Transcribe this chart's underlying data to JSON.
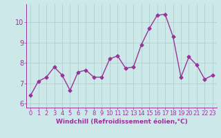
{
  "x": [
    0,
    1,
    2,
    3,
    4,
    5,
    6,
    7,
    8,
    9,
    10,
    11,
    12,
    13,
    14,
    15,
    16,
    17,
    18,
    19,
    20,
    21,
    22,
    23
  ],
  "y": [
    6.4,
    7.1,
    7.3,
    7.8,
    7.4,
    6.65,
    7.55,
    7.65,
    7.3,
    7.3,
    8.2,
    8.35,
    7.75,
    7.8,
    8.9,
    9.7,
    10.35,
    10.4,
    9.3,
    7.3,
    8.3,
    7.9,
    7.2,
    7.4
  ],
  "line_color": "#993399",
  "marker": "D",
  "marker_size": 2.5,
  "linewidth": 1.0,
  "bg_color": "#cce8e8",
  "grid_color": "#aacccc",
  "xlabel": "Windchill (Refroidissement éolien,°C)",
  "xlabel_fontsize": 6.5,
  "xlabel_color": "#993399",
  "tick_color": "#993399",
  "tick_fontsize": 6.0,
  "ytick_fontsize": 7.0,
  "ylim": [
    5.8,
    10.9
  ],
  "yticks": [
    6,
    7,
    8,
    9,
    10
  ],
  "xlim": [
    -0.5,
    23.5
  ],
  "xticks": [
    0,
    1,
    2,
    3,
    4,
    5,
    6,
    7,
    8,
    9,
    10,
    11,
    12,
    13,
    14,
    15,
    16,
    17,
    18,
    19,
    20,
    21,
    22,
    23
  ]
}
